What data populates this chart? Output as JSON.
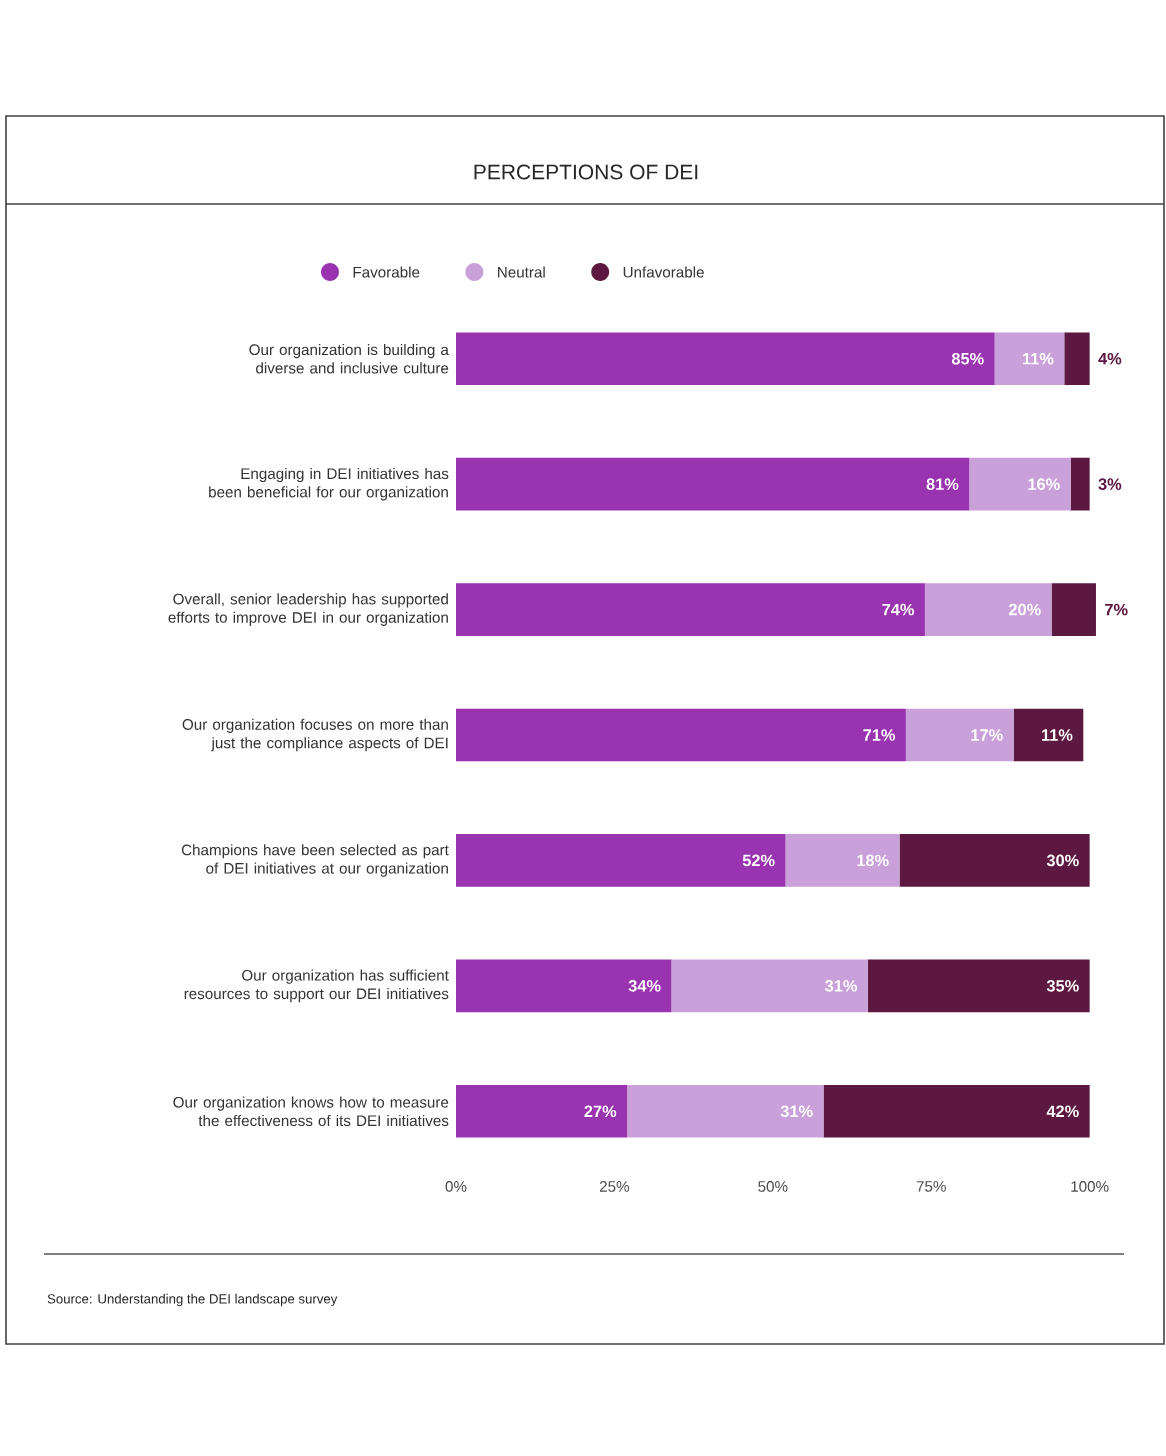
{
  "chart_data": {
    "type": "bar",
    "orientation": "horizontal",
    "stacked": true,
    "title": "PERCEPTIONS OF DEI",
    "categories": [
      "Our organization is building a diverse and inclusive culture",
      "Engaging in DEI initiatives has been beneficial for our organization",
      "Overall, senior leadership has supported efforts to improve DEI in our organization",
      "Our organization focuses on more than just the compliance aspects of DEI",
      "Champions have been selected as part of DEI initiatives at our organization",
      "Our organization has sufficient resources to support our DEI initiatives",
      "Our organization knows how to measure the effectiveness of its DEI initiatives"
    ],
    "series": [
      {
        "name": "Favorable",
        "color": "#9933b0",
        "values": [
          85,
          81,
          74,
          71,
          52,
          34,
          27
        ],
        "value_labels": [
          "85%",
          "81%",
          "74%",
          "71%",
          "52%",
          "34%",
          "27%"
        ]
      },
      {
        "name": "Neutral",
        "color": "#c9a0d9",
        "values": [
          11,
          16,
          20,
          17,
          18,
          31,
          31
        ],
        "value_labels": [
          "11%",
          "16%",
          "20%",
          "17%",
          "18%",
          "31%",
          "31%"
        ]
      },
      {
        "name": "Unfavorable",
        "color": "#5c1840",
        "values": [
          4,
          3,
          7,
          11,
          30,
          35,
          42
        ],
        "value_labels": [
          "4%",
          "3%",
          "7%",
          "11%",
          "30%",
          "35%",
          "42%"
        ]
      }
    ],
    "xlim": [
      0,
      101
    ],
    "xticks": [
      {
        "value": 0,
        "label": "0%"
      },
      {
        "value": 25,
        "label": "25%"
      },
      {
        "value": 50,
        "label": "50%"
      },
      {
        "value": 75,
        "label": "75%"
      },
      {
        "value": 100,
        "label": "100%"
      }
    ],
    "legend": "top",
    "grid": false,
    "annotations": [
      "Source: Understanding the DEI landscape survey"
    ]
  }
}
